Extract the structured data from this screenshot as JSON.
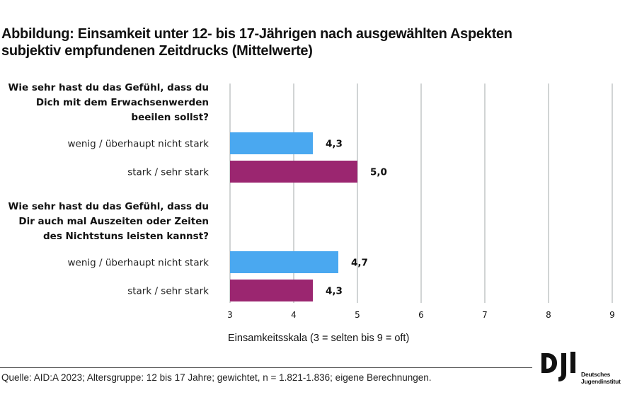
{
  "title": {
    "line1": "Abbildung: Einsamkeit unter 12- bis 17-Jährigen nach ausgewählten Aspekten",
    "line2": "subjektiv empfundenen Zeitdrucks (Mittelwerte)"
  },
  "source": "Quelle: AID:A 2023; Altersgruppe: 12 bis 17 Jahre; gewichtet, n = 1.821-1.836; eigene Berechnungen.",
  "logo": {
    "mark": "DJI",
    "line1": "Deutsches",
    "line2": "Jugendinstitut"
  },
  "colors": {
    "low": "#4aa8f0",
    "high": "#9b2670",
    "grid": "#b8bcbe"
  },
  "chart_data": {
    "type": "bar",
    "orientation": "horizontal",
    "title": "Abbildung: Einsamkeit unter 12- bis 17-Jährigen nach ausgewählten Aspekten subjektiv empfundenen Zeitdrucks (Mittelwerte)",
    "xlabel": "Einsamkeitsskala (3 = selten bis 9 = oft)",
    "ylabel": "",
    "xlim": [
      3,
      9
    ],
    "xticks": [
      "3",
      "4",
      "5",
      "6",
      "7",
      "8",
      "9"
    ],
    "grid": true,
    "legend": "none",
    "groups": [
      {
        "question": [
          "Wie sehr hast du das Gefühl, dass du",
          "Dich mit dem Erwachsenwerden",
          "beeilen sollst?"
        ],
        "bars": [
          {
            "category": "wenig / überhaupt nicht stark",
            "value": 4.3,
            "label": "4,3",
            "series": "low"
          },
          {
            "category": "stark / sehr stark",
            "value": 5.0,
            "label": "5,0",
            "series": "high"
          }
        ]
      },
      {
        "question": [
          "Wie sehr hast du das Gefühl, dass du",
          "Dir auch mal Auszeiten oder Zeiten",
          "des Nichtstuns leisten kannst?"
        ],
        "bars": [
          {
            "category": "wenig / überhaupt nicht stark",
            "value": 4.7,
            "label": "4,7",
            "series": "low"
          },
          {
            "category": "stark / sehr stark",
            "value": 4.3,
            "label": "4,3",
            "series": "high"
          }
        ]
      }
    ]
  }
}
